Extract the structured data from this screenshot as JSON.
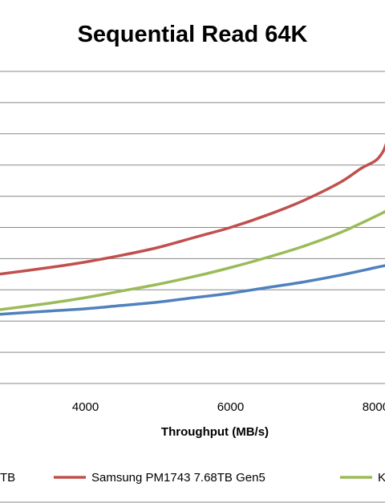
{
  "chart_data": {
    "type": "line",
    "title": "Sequential Read 64K",
    "xlabel": "Throughput (MB/s)",
    "ylabel": "",
    "xlim": [
      2800,
      8150
    ],
    "ylim": [
      0,
      14
    ],
    "x_ticks": [
      4000,
      6000,
      8000
    ],
    "x_tick_labels": [
      "4000",
      "6000",
      "8000"
    ],
    "grid": true,
    "legend_position": "bottom",
    "series": [
      {
        "name": "TB",
        "color": "#4f81bd",
        "x": [
          2800,
          3500,
          4000,
          4500,
          5000,
          5500,
          6000,
          6500,
          7000,
          7500,
          8000,
          8150
        ],
        "y": [
          3.1,
          3.25,
          3.35,
          3.5,
          3.65,
          3.85,
          4.05,
          4.3,
          4.55,
          4.85,
          5.2,
          5.3
        ]
      },
      {
        "name": "Samsung PM1743 7.68TB Gen5",
        "color": "#c0504d",
        "x": [
          2800,
          3500,
          4000,
          4500,
          5000,
          5500,
          6000,
          6500,
          7000,
          7500,
          7800,
          8000,
          8100,
          8150
        ],
        "y": [
          4.9,
          5.2,
          5.45,
          5.75,
          6.1,
          6.55,
          7.0,
          7.55,
          8.2,
          9.0,
          9.65,
          10.0,
          10.4,
          10.8
        ]
      },
      {
        "name": "K",
        "color": "#9bbb59",
        "x": [
          2800,
          3500,
          4000,
          4500,
          5000,
          5500,
          6000,
          6500,
          7000,
          7500,
          8000,
          8150
        ],
        "y": [
          3.3,
          3.6,
          3.85,
          4.15,
          4.45,
          4.8,
          5.2,
          5.65,
          6.15,
          6.75,
          7.5,
          7.75
        ]
      }
    ]
  }
}
